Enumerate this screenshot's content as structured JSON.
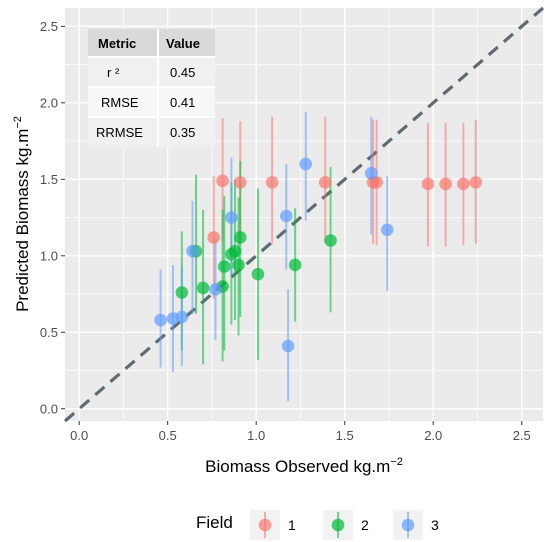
{
  "chart_data": {
    "type": "scatter",
    "xlabel": "Biomass Observed kg.m",
    "xlabel_sup": "−2",
    "ylabel": "Predicted Biomass kg.m",
    "ylabel_sup": "−2",
    "xlim": [
      -0.08,
      2.62
    ],
    "ylim": [
      -0.08,
      2.62
    ],
    "x_ticks": [
      0.0,
      0.5,
      1.0,
      1.5,
      2.0,
      2.5
    ],
    "y_ticks": [
      0.0,
      0.5,
      1.0,
      1.5,
      2.0,
      2.5
    ],
    "x_tick_labels": [
      "0.0",
      "0.5",
      "1.0",
      "1.5",
      "2.0",
      "2.5"
    ],
    "y_tick_labels": [
      "0.0",
      "0.5",
      "1.0",
      "1.5",
      "2.0",
      "2.5"
    ],
    "grid": true,
    "reference_line": "1:1",
    "legend": {
      "title": "Field",
      "position": "bottom",
      "items": [
        "1",
        "2",
        "3"
      ]
    },
    "colors": {
      "1": "#F8766D",
      "2": "#00BA38",
      "3": "#619CFF",
      "ref_line": "#5f6b72",
      "panel": "#ebebeb"
    },
    "metrics_table": {
      "headers": [
        "Metric",
        "Value"
      ],
      "rows": [
        {
          "metric": "r ²",
          "value": "0.45"
        },
        {
          "metric": "RMSE",
          "value": "0.41"
        },
        {
          "metric": "RRMSE",
          "value": "0.35"
        }
      ]
    },
    "series": [
      {
        "field": "1",
        "points": [
          {
            "x": 0.76,
            "y": 1.12,
            "ylo": 0.72,
            "yhi": 1.52
          },
          {
            "x": 0.81,
            "y": 1.49,
            "ylo": 1.1,
            "yhi": 1.9
          },
          {
            "x": 0.91,
            "y": 1.48,
            "ylo": 1.08,
            "yhi": 1.88
          },
          {
            "x": 1.09,
            "y": 1.48,
            "ylo": 1.08,
            "yhi": 1.91
          },
          {
            "x": 1.39,
            "y": 1.48,
            "ylo": 1.09,
            "yhi": 1.91
          },
          {
            "x": 1.66,
            "y": 1.48,
            "ylo": 1.08,
            "yhi": 1.89
          },
          {
            "x": 1.68,
            "y": 1.48,
            "ylo": 1.07,
            "yhi": 1.89
          },
          {
            "x": 1.97,
            "y": 1.47,
            "ylo": 1.06,
            "yhi": 1.87
          },
          {
            "x": 2.07,
            "y": 1.47,
            "ylo": 1.06,
            "yhi": 1.87
          },
          {
            "x": 2.17,
            "y": 1.47,
            "ylo": 1.07,
            "yhi": 1.87
          },
          {
            "x": 2.24,
            "y": 1.48,
            "ylo": 1.08,
            "yhi": 1.89
          }
        ]
      },
      {
        "field": "2",
        "points": [
          {
            "x": 0.58,
            "y": 0.76,
            "ylo": 0.38,
            "yhi": 1.16
          },
          {
            "x": 0.66,
            "y": 1.03,
            "ylo": 0.62,
            "yhi": 1.53
          },
          {
            "x": 0.7,
            "y": 0.79,
            "ylo": 0.29,
            "yhi": 1.3
          },
          {
            "x": 0.81,
            "y": 0.8,
            "ylo": 0.31,
            "yhi": 1.3
          },
          {
            "x": 0.82,
            "y": 0.93,
            "ylo": 0.38,
            "yhi": 1.39
          },
          {
            "x": 0.86,
            "y": 1.01,
            "ylo": 0.55,
            "yhi": 1.48
          },
          {
            "x": 0.88,
            "y": 1.03,
            "ylo": 0.58,
            "yhi": 1.5
          },
          {
            "x": 0.9,
            "y": 0.94,
            "ylo": 0.48,
            "yhi": 1.38
          },
          {
            "x": 0.91,
            "y": 1.12,
            "ylo": 0.6,
            "yhi": 1.62
          },
          {
            "x": 1.01,
            "y": 0.88,
            "ylo": 0.32,
            "yhi": 1.44
          },
          {
            "x": 1.22,
            "y": 0.94,
            "ylo": 0.57,
            "yhi": 1.31
          },
          {
            "x": 1.42,
            "y": 1.1,
            "ylo": 0.63,
            "yhi": 1.58
          }
        ]
      },
      {
        "field": "3",
        "points": [
          {
            "x": 0.46,
            "y": 0.58,
            "ylo": 0.27,
            "yhi": 0.91
          },
          {
            "x": 0.53,
            "y": 0.59,
            "ylo": 0.24,
            "yhi": 0.94
          },
          {
            "x": 0.58,
            "y": 0.6,
            "ylo": 0.28,
            "yhi": 0.93
          },
          {
            "x": 0.64,
            "y": 1.03,
            "ylo": 0.62,
            "yhi": 1.36
          },
          {
            "x": 0.77,
            "y": 0.78,
            "ylo": 0.45,
            "yhi": 1.11
          },
          {
            "x": 0.86,
            "y": 1.25,
            "ylo": 0.87,
            "yhi": 1.64
          },
          {
            "x": 1.17,
            "y": 1.26,
            "ylo": 0.91,
            "yhi": 1.6
          },
          {
            "x": 1.18,
            "y": 0.41,
            "ylo": 0.05,
            "yhi": 0.78
          },
          {
            "x": 1.28,
            "y": 1.6,
            "ylo": 1.23,
            "yhi": 1.94
          },
          {
            "x": 1.65,
            "y": 1.54,
            "ylo": 1.14,
            "yhi": 1.91
          },
          {
            "x": 1.74,
            "y": 1.17,
            "ylo": 0.77,
            "yhi": 1.52
          }
        ]
      }
    ]
  }
}
